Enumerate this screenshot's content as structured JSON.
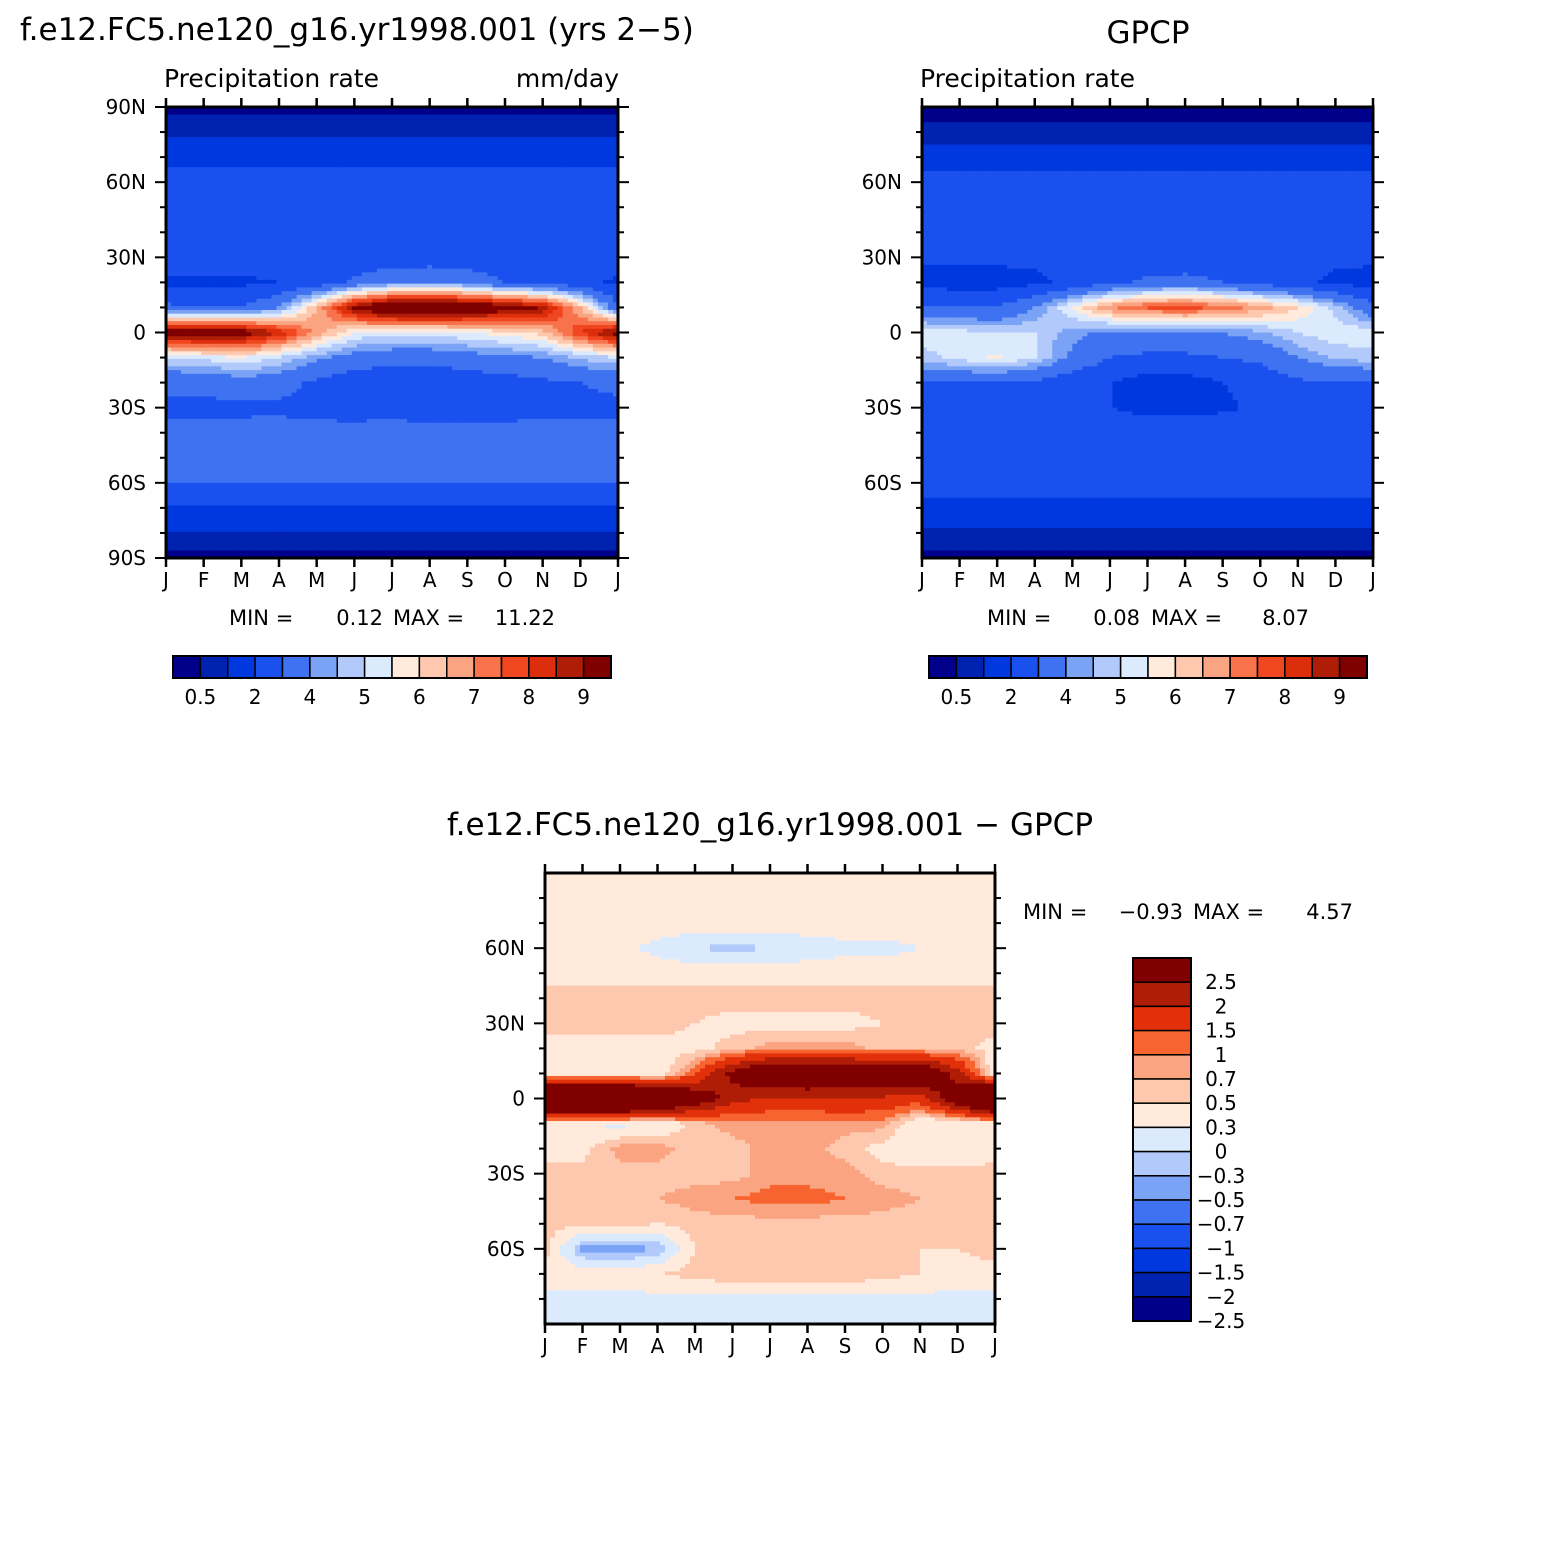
{
  "palette_abs": [
    "#00008b",
    "#0022b0",
    "#0038e0",
    "#1a50ee",
    "#3f72f0",
    "#7aa2f5",
    "#b2c9fb",
    "#dceafe",
    "#ffeadc",
    "#fdc8ad",
    "#fba481",
    "#f8734c",
    "#f14720",
    "#dc2e0b",
    "#b01d06",
    "#800000"
  ],
  "palette_diff": [
    "#800000",
    "#b01d06",
    "#e2300a",
    "#f8642f",
    "#fba481",
    "#fdc8ad",
    "#ffeadc",
    "#dceafe",
    "#b2c9fb",
    "#7aa2f5",
    "#3f72f0",
    "#1a50ee",
    "#0038e0",
    "#0022b0",
    "#00008b"
  ],
  "panels": {
    "model": {
      "title": "f.e12.FC5.ne120_g16.yr1998.001 (yrs 2-5)",
      "left_label": "Precipitation rate",
      "right_label": "mm/day",
      "stats": {
        "min_label": "MIN =",
        "min": "0.12",
        "max_label": "MAX =",
        "max": "11.22"
      }
    },
    "obs": {
      "title": "GPCP",
      "left_label": "Precipitation rate",
      "stats": {
        "min_label": "MIN =",
        "min": "0.08",
        "max_label": "MAX =",
        "max": "8.07"
      }
    },
    "diff": {
      "title": "f.e12.FC5.ne120_g16.yr1998.001 - GPCP",
      "stats": {
        "min_label": "MIN =",
        "min": "-0.93",
        "max_label": "MAX =",
        "max": "4.57"
      }
    }
  },
  "chart_data": [
    {
      "type": "heatmap",
      "title": "f.e12.FC5.ne120_g16.yr1998.001 (yrs 2-5)",
      "subtitle": "Precipitation rate",
      "units": "mm/day",
      "x_tick_labels": [
        "J",
        "F",
        "M",
        "A",
        "M",
        "J",
        "J",
        "A",
        "S",
        "O",
        "N",
        "D",
        "J"
      ],
      "y_tick_labels": [
        "90N",
        "60N",
        "30N",
        "0",
        "30S",
        "60S",
        "90S"
      ],
      "y_range": [
        -90,
        90
      ],
      "colorbar_labels": [
        "0.5",
        "2",
        "4",
        "5",
        "6",
        "7",
        "8",
        "9"
      ],
      "min": 0.12,
      "max": 11.22,
      "latitudes": [
        -90,
        -80,
        -70,
        -60,
        -50,
        -40,
        -30,
        -20,
        -10,
        0,
        10,
        20,
        30,
        40,
        50,
        60,
        70,
        80,
        90
      ],
      "field_mm_day_by_month": [
        [
          0.3,
          1.0,
          1.8,
          3.0,
          3.2,
          3.3,
          2.8,
          3.2,
          5.0,
          9.5,
          3.2,
          1.8,
          2.6,
          2.8,
          2.6,
          2.5,
          1.6,
          0.9,
          0.3
        ],
        [
          0.3,
          1.0,
          1.8,
          3.0,
          3.2,
          3.3,
          2.8,
          3.2,
          5.2,
          9.8,
          3.0,
          1.8,
          2.6,
          2.8,
          2.6,
          2.5,
          1.6,
          0.9,
          0.3
        ],
        [
          0.3,
          1.0,
          1.8,
          3.0,
          3.2,
          3.3,
          2.8,
          3.6,
          5.5,
          9.6,
          3.0,
          1.8,
          2.6,
          2.8,
          2.6,
          2.5,
          1.6,
          0.9,
          0.3
        ],
        [
          0.3,
          1.0,
          1.8,
          3.0,
          3.2,
          3.4,
          2.8,
          3.4,
          5.0,
          8.5,
          4.0,
          2.0,
          2.6,
          2.8,
          2.6,
          2.5,
          1.6,
          0.9,
          0.3
        ],
        [
          0.3,
          1.0,
          1.8,
          3.0,
          3.3,
          3.4,
          2.6,
          2.8,
          4.2,
          6.8,
          6.5,
          2.4,
          2.5,
          2.8,
          2.6,
          2.5,
          1.6,
          0.9,
          0.3
        ],
        [
          0.3,
          1.0,
          1.8,
          3.0,
          3.3,
          3.5,
          2.4,
          2.4,
          3.6,
          5.5,
          9.2,
          3.2,
          2.4,
          2.8,
          2.6,
          2.5,
          1.6,
          0.9,
          0.3
        ],
        [
          0.3,
          1.0,
          1.8,
          3.0,
          3.3,
          3.8,
          2.2,
          2.2,
          3.4,
          5.2,
          10.5,
          3.8,
          2.4,
          2.8,
          2.6,
          2.5,
          1.6,
          0.9,
          0.3
        ],
        [
          0.3,
          1.0,
          1.8,
          3.0,
          3.3,
          3.6,
          2.2,
          2.2,
          3.4,
          5.2,
          10.8,
          4.0,
          2.4,
          2.8,
          2.6,
          2.5,
          1.6,
          0.9,
          0.3
        ],
        [
          0.3,
          1.0,
          1.8,
          3.0,
          3.2,
          3.4,
          2.4,
          2.4,
          3.6,
          5.5,
          10.2,
          3.6,
          2.4,
          2.8,
          2.6,
          2.5,
          1.6,
          0.9,
          0.3
        ],
        [
          0.3,
          1.0,
          1.8,
          3.0,
          3.2,
          3.3,
          2.6,
          2.6,
          3.8,
          5.8,
          9.6,
          3.0,
          2.5,
          3.0,
          2.6,
          2.5,
          1.6,
          0.9,
          0.3
        ],
        [
          0.3,
          1.0,
          1.8,
          3.0,
          3.2,
          3.3,
          2.8,
          2.8,
          4.0,
          6.2,
          9.0,
          2.6,
          2.6,
          3.0,
          2.6,
          2.5,
          1.6,
          0.9,
          0.3
        ],
        [
          0.3,
          1.0,
          1.8,
          3.0,
          3.2,
          3.3,
          2.8,
          3.0,
          4.6,
          8.0,
          6.5,
          2.2,
          2.6,
          2.8,
          2.6,
          2.5,
          1.6,
          0.9,
          0.3
        ],
        [
          0.3,
          1.0,
          1.8,
          3.0,
          3.2,
          3.3,
          2.8,
          3.2,
          5.0,
          9.5,
          3.2,
          1.8,
          2.6,
          2.8,
          2.6,
          2.5,
          1.6,
          0.9,
          0.3
        ]
      ]
    },
    {
      "type": "heatmap",
      "title": "GPCP",
      "subtitle": "Precipitation rate",
      "x_tick_labels": [
        "J",
        "F",
        "M",
        "A",
        "M",
        "J",
        "J",
        "A",
        "S",
        "O",
        "N",
        "D",
        "J"
      ],
      "y_tick_labels": [
        "60N",
        "30N",
        "0",
        "30S",
        "60S"
      ],
      "y_range": [
        -90,
        90
      ],
      "colorbar_labels": [
        "0.5",
        "2",
        "4",
        "5",
        "6",
        "7",
        "8",
        "9"
      ],
      "min": 0.08,
      "max": 8.07,
      "latitudes": [
        -90,
        -80,
        -70,
        -60,
        -50,
        -40,
        -30,
        -20,
        -10,
        0,
        10,
        20,
        30,
        40,
        50,
        60,
        70,
        80,
        90
      ],
      "field_mm_day_by_month": [
        [
          0.3,
          0.9,
          1.6,
          2.6,
          2.8,
          2.8,
          2.4,
          3.0,
          4.8,
          5.3,
          3.2,
          1.6,
          2.2,
          2.4,
          2.4,
          2.4,
          1.4,
          0.6,
          0.3
        ],
        [
          0.3,
          0.9,
          1.6,
          2.6,
          2.8,
          2.8,
          2.4,
          3.0,
          5.2,
          5.2,
          3.0,
          1.6,
          2.2,
          2.4,
          2.4,
          2.4,
          1.4,
          0.6,
          0.3
        ],
        [
          0.3,
          0.9,
          1.6,
          2.6,
          2.8,
          2.8,
          2.4,
          3.0,
          5.6,
          5.0,
          3.0,
          1.6,
          2.2,
          2.4,
          2.4,
          2.4,
          1.4,
          0.6,
          0.3
        ],
        [
          0.3,
          0.9,
          1.6,
          2.6,
          2.8,
          2.8,
          2.4,
          2.8,
          5.0,
          5.0,
          4.0,
          1.8,
          2.2,
          2.4,
          2.4,
          2.4,
          1.4,
          0.6,
          0.3
        ],
        [
          0.3,
          0.9,
          1.6,
          2.6,
          2.9,
          2.8,
          2.2,
          2.4,
          3.8,
          4.2,
          5.6,
          2.2,
          2.2,
          2.4,
          2.4,
          2.4,
          1.4,
          0.6,
          0.3
        ],
        [
          0.3,
          0.9,
          1.6,
          2.6,
          2.9,
          2.8,
          2.0,
          2.0,
          3.0,
          3.8,
          7.0,
          2.8,
          2.2,
          2.4,
          2.4,
          2.4,
          1.4,
          0.6,
          0.3
        ],
        [
          0.3,
          0.9,
          1.6,
          2.6,
          2.9,
          2.8,
          1.6,
          1.6,
          2.8,
          3.8,
          7.6,
          3.2,
          2.2,
          2.4,
          2.4,
          2.4,
          1.4,
          0.6,
          0.3
        ],
        [
          0.3,
          0.9,
          1.6,
          2.6,
          2.9,
          2.8,
          1.6,
          1.6,
          2.8,
          3.8,
          7.8,
          3.4,
          2.2,
          2.4,
          2.4,
          2.4,
          1.4,
          0.6,
          0.3
        ],
        [
          0.3,
          0.9,
          1.6,
          2.6,
          2.8,
          2.8,
          1.8,
          2.0,
          3.0,
          4.0,
          7.4,
          3.0,
          2.2,
          2.4,
          2.4,
          2.4,
          1.4,
          0.6,
          0.3
        ],
        [
          0.3,
          0.9,
          1.6,
          2.6,
          2.8,
          2.8,
          2.2,
          2.4,
          3.2,
          4.4,
          6.8,
          2.6,
          2.2,
          2.6,
          2.4,
          2.4,
          1.4,
          0.6,
          0.3
        ],
        [
          0.3,
          0.9,
          1.6,
          2.6,
          2.8,
          2.8,
          2.4,
          2.8,
          4.0,
          5.0,
          6.0,
          2.2,
          2.2,
          2.6,
          2.4,
          2.4,
          1.4,
          0.6,
          0.3
        ],
        [
          0.3,
          0.9,
          1.6,
          2.6,
          2.8,
          2.8,
          2.4,
          3.0,
          4.6,
          5.4,
          4.8,
          1.8,
          2.2,
          2.4,
          2.4,
          2.4,
          1.4,
          0.6,
          0.3
        ],
        [
          0.3,
          0.9,
          1.6,
          2.6,
          2.8,
          2.8,
          2.4,
          3.0,
          4.8,
          5.3,
          3.2,
          1.6,
          2.2,
          2.4,
          2.4,
          2.4,
          1.4,
          0.6,
          0.3
        ]
      ]
    },
    {
      "type": "heatmap",
      "title": "f.e12.FC5.ne120_g16.yr1998.001 - GPCP",
      "x_tick_labels": [
        "J",
        "F",
        "M",
        "A",
        "M",
        "J",
        "J",
        "A",
        "S",
        "O",
        "N",
        "D",
        "J"
      ],
      "y_tick_labels": [
        "60N",
        "30N",
        "0",
        "30S",
        "60S"
      ],
      "y_range": [
        -90,
        90
      ],
      "colorbar_labels": [
        "2.5",
        "2",
        "1.5",
        "1",
        "0.7",
        "0.5",
        "0.3",
        "0",
        "-0.3",
        "-0.5",
        "-0.7",
        "-1",
        "-1.5",
        "-2",
        "-2.5"
      ],
      "min": -0.93,
      "max": 4.57,
      "latitudes": [
        -90,
        -80,
        -70,
        -60,
        -50,
        -40,
        -30,
        -20,
        -10,
        0,
        10,
        20,
        30,
        40,
        50,
        60,
        70,
        80,
        90
      ],
      "field_mm_day_by_month": [
        [
          0.0,
          -0.1,
          0.2,
          0.4,
          0.4,
          0.5,
          0.4,
          0.2,
          0.2,
          4.2,
          0.0,
          0.2,
          0.4,
          0.4,
          0.2,
          0.1,
          0.2,
          0.3,
          0.0
        ],
        [
          0.0,
          -0.1,
          0.2,
          -0.6,
          0.4,
          0.5,
          0.4,
          0.2,
          0.0,
          4.6,
          0.0,
          0.2,
          0.4,
          0.4,
          0.2,
          0.1,
          0.2,
          0.3,
          0.0
        ],
        [
          0.0,
          -0.1,
          0.2,
          -0.7,
          0.4,
          0.5,
          0.4,
          0.6,
          -0.1,
          4.6,
          0.0,
          0.2,
          0.4,
          0.4,
          0.2,
          0.1,
          0.2,
          0.3,
          0.0
        ],
        [
          0.0,
          -0.1,
          0.3,
          -0.5,
          0.3,
          0.5,
          0.4,
          0.6,
          0.0,
          3.5,
          0.0,
          0.2,
          0.4,
          0.4,
          0.2,
          -0.1,
          0.2,
          0.3,
          0.0
        ],
        [
          0.0,
          -0.1,
          0.4,
          0.3,
          0.4,
          0.6,
          0.4,
          0.4,
          0.4,
          2.6,
          0.9,
          0.2,
          0.3,
          0.4,
          0.2,
          -0.3,
          0.2,
          0.3,
          0.0
        ],
        [
          0.0,
          -0.1,
          0.5,
          0.3,
          0.4,
          0.7,
          0.4,
          0.4,
          0.6,
          1.7,
          2.2,
          0.4,
          0.2,
          0.4,
          0.2,
          -0.4,
          0.2,
          0.3,
          0.0
        ],
        [
          0.0,
          -0.1,
          0.5,
          0.3,
          0.4,
          0.8,
          0.6,
          0.6,
          0.6,
          1.4,
          2.9,
          0.6,
          0.2,
          0.4,
          0.2,
          -0.3,
          0.2,
          0.3,
          0.0
        ],
        [
          0.0,
          -0.1,
          0.5,
          0.3,
          0.4,
          0.8,
          0.6,
          0.6,
          0.6,
          1.4,
          3.0,
          0.6,
          0.2,
          0.4,
          0.2,
          -0.2,
          0.2,
          0.3,
          0.0
        ],
        [
          0.0,
          -0.1,
          0.5,
          0.3,
          0.4,
          0.7,
          0.6,
          0.4,
          0.6,
          1.5,
          2.8,
          0.6,
          0.2,
          0.4,
          0.2,
          -0.1,
          0.2,
          0.3,
          0.0
        ],
        [
          0.0,
          -0.1,
          0.4,
          0.3,
          0.4,
          0.6,
          0.4,
          0.2,
          0.6,
          1.4,
          2.8,
          0.4,
          0.3,
          0.4,
          0.2,
          -0.1,
          0.2,
          0.3,
          0.0
        ],
        [
          0.0,
          -0.1,
          0.3,
          0.3,
          0.4,
          0.5,
          0.4,
          0.0,
          0.0,
          1.2,
          3.0,
          0.4,
          0.4,
          0.4,
          0.2,
          0.0,
          0.2,
          0.3,
          0.0
        ],
        [
          0.0,
          -0.1,
          0.2,
          0.3,
          0.4,
          0.5,
          0.4,
          0.0,
          0.0,
          2.6,
          1.7,
          0.4,
          0.4,
          0.4,
          0.2,
          0.1,
          0.2,
          0.3,
          0.0
        ],
        [
          0.0,
          -0.1,
          0.2,
          0.4,
          0.4,
          0.5,
          0.4,
          0.2,
          0.2,
          4.2,
          0.0,
          0.2,
          0.4,
          0.4,
          0.2,
          0.1,
          0.2,
          0.3,
          0.0
        ]
      ]
    }
  ]
}
